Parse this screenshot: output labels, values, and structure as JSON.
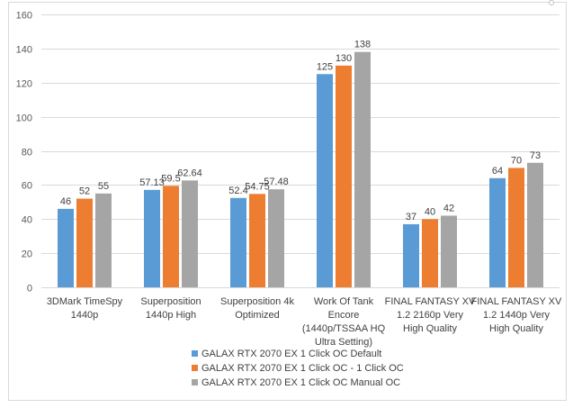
{
  "chart_data": {
    "type": "bar",
    "title": "",
    "xlabel": "",
    "ylabel": "",
    "ylim": [
      0,
      160
    ],
    "yticks": [
      0,
      20,
      40,
      60,
      80,
      100,
      120,
      140,
      160
    ],
    "grid": true,
    "legend_position": "bottom",
    "categories": [
      [
        "3DMark TimeSpy",
        "1440p"
      ],
      [
        "Superposition",
        "1440p High"
      ],
      [
        "Superposition 4k",
        "Optimized"
      ],
      [
        "Work Of Tank",
        "Encore",
        "(1440p/TSSAA HQ",
        "Ultra Setting)"
      ],
      [
        "FINAL FANTASY XV",
        "1.2 2160p Very",
        "High Quality"
      ],
      [
        "FINAL FANTASY XV",
        "1.2 1440p Very",
        "High Quality"
      ]
    ],
    "series": [
      {
        "name": "GALAX RTX 2070 EX 1 Click OC Default",
        "color": "#5b9bd5",
        "values": [
          46,
          57.13,
          52.4,
          125,
          37,
          64
        ],
        "labels": [
          "46",
          "57.13",
          "52.4",
          "125",
          "37",
          "64"
        ]
      },
      {
        "name": "GALAX RTX 2070 EX 1 Click OC - 1 Click OC",
        "color": "#ed7d31",
        "values": [
          52,
          59.5,
          54.75,
          130,
          40,
          70
        ],
        "labels": [
          "52",
          "59.5",
          "54.75",
          "130",
          "40",
          "70"
        ]
      },
      {
        "name": "GALAX RTX 2070 EX 1 Click OC Manual OC",
        "color": "#a5a5a5",
        "values": [
          55,
          62.64,
          57.48,
          138,
          42,
          73
        ],
        "labels": [
          "55",
          "62.64",
          "57.48",
          "138",
          "42",
          "73"
        ]
      }
    ]
  }
}
